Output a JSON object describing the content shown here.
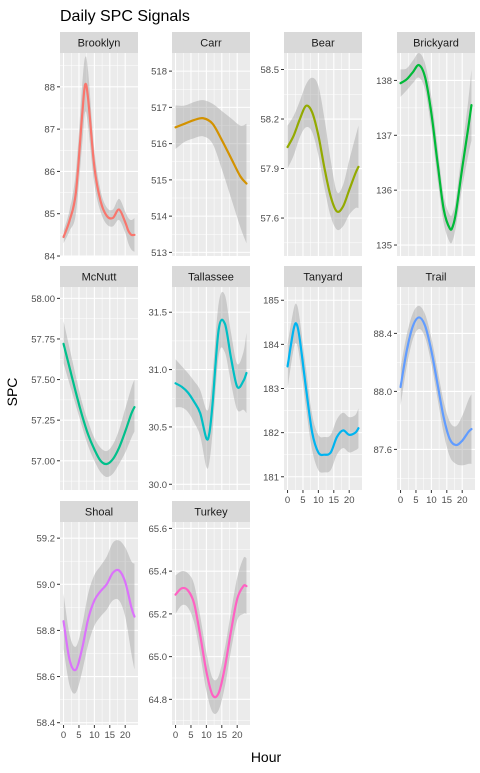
{
  "chart_data": {
    "type": "line",
    "title": "Daily SPC Signals",
    "xlabel": "Hour",
    "ylabel": "SPC",
    "grid": true,
    "x_ticks": [
      0,
      5,
      10,
      15,
      20
    ],
    "xlim": [
      -1.15,
      24.15
    ],
    "facets": [
      {
        "name": "Brooklyn",
        "color": "#F8766D",
        "ylim": [
          84.0,
          88.8
        ],
        "yticks": [
          84,
          85,
          86,
          87,
          88
        ],
        "x": [
          0,
          2,
          4,
          6,
          7,
          8,
          10,
          12,
          14,
          16,
          18,
          20,
          21,
          22,
          23
        ],
        "y": [
          84.45,
          84.85,
          85.5,
          87.3,
          88.05,
          87.7,
          86.1,
          85.3,
          84.95,
          84.9,
          85.1,
          84.8,
          84.6,
          84.5,
          84.5
        ],
        "lower": [
          84.3,
          84.6,
          85.0,
          86.6,
          87.4,
          87.05,
          85.7,
          85.05,
          84.75,
          84.7,
          84.85,
          84.55,
          84.3,
          84.15,
          84.1
        ],
        "upper": [
          84.6,
          85.1,
          86.0,
          88.0,
          88.7,
          88.35,
          86.5,
          85.55,
          85.15,
          85.1,
          85.35,
          85.05,
          84.9,
          84.85,
          84.9
        ]
      },
      {
        "name": "Carr",
        "color": "#D39200",
        "ylim": [
          512.9,
          518.5
        ],
        "yticks": [
          513,
          514,
          515,
          516,
          517,
          518
        ],
        "x": [
          0,
          3,
          6,
          9,
          12,
          15,
          18,
          21,
          23
        ],
        "y": [
          516.45,
          516.55,
          516.65,
          516.7,
          516.55,
          516.1,
          515.6,
          515.1,
          514.9
        ],
        "lower": [
          515.85,
          516.05,
          516.15,
          516.2,
          516.0,
          515.3,
          514.5,
          513.7,
          513.25
        ],
        "upper": [
          517.05,
          517.05,
          517.15,
          517.2,
          517.1,
          516.9,
          516.7,
          516.5,
          516.55
        ]
      },
      {
        "name": "Bear",
        "color": "#93AA00",
        "ylim": [
          57.37,
          58.6
        ],
        "yticks": [
          57.6,
          57.9,
          58.2,
          58.5
        ],
        "x": [
          0,
          2,
          4,
          6,
          8,
          10,
          12,
          14,
          16,
          18,
          20,
          22,
          23
        ],
        "y": [
          58.03,
          58.1,
          58.2,
          58.28,
          58.24,
          58.1,
          57.9,
          57.73,
          57.64,
          57.67,
          57.77,
          57.87,
          57.91
        ],
        "lower": [
          57.9,
          57.98,
          58.09,
          58.15,
          58.12,
          57.98,
          57.78,
          57.61,
          57.53,
          57.55,
          57.62,
          57.66,
          57.66
        ],
        "upper": [
          58.16,
          58.22,
          58.31,
          58.41,
          58.45,
          58.4,
          58.2,
          57.95,
          57.76,
          57.8,
          57.95,
          58.09,
          58.16
        ]
      },
      {
        "name": "Brickyard",
        "color": "#00BA38",
        "ylim": [
          134.8,
          138.5
        ],
        "yticks": [
          135,
          136,
          137,
          138
        ],
        "x": [
          0,
          2,
          4,
          6,
          8,
          10,
          12,
          14,
          16,
          17,
          18,
          20,
          22,
          23
        ],
        "y": [
          137.95,
          138.02,
          138.15,
          138.28,
          138.05,
          137.4,
          136.5,
          135.65,
          135.3,
          135.35,
          135.6,
          136.4,
          137.15,
          137.55
        ],
        "lower": [
          137.7,
          137.82,
          137.95,
          138.05,
          137.82,
          137.1,
          136.2,
          135.4,
          135.05,
          135.1,
          135.35,
          136.05,
          136.65,
          136.9
        ],
        "upper": [
          138.2,
          138.22,
          138.36,
          138.5,
          138.3,
          137.7,
          136.8,
          135.9,
          135.55,
          135.6,
          135.85,
          136.75,
          137.65,
          138.2
        ]
      },
      {
        "name": "McNutt",
        "color": "#00C08B",
        "ylim": [
          56.82,
          58.07
        ],
        "yticks": [
          57.0,
          57.25,
          57.5,
          57.75,
          58.0
        ],
        "x": [
          0,
          2,
          4,
          6,
          8,
          10,
          12,
          14,
          16,
          18,
          20,
          22,
          23
        ],
        "y": [
          57.72,
          57.57,
          57.42,
          57.28,
          57.16,
          57.07,
          57.0,
          56.98,
          57.01,
          57.08,
          57.18,
          57.29,
          57.33
        ],
        "lower": [
          57.6,
          57.47,
          57.34,
          57.21,
          57.09,
          57.0,
          56.93,
          56.9,
          56.92,
          56.98,
          57.05,
          57.14,
          57.18
        ],
        "upper": [
          57.86,
          57.69,
          57.52,
          57.36,
          57.24,
          57.14,
          57.08,
          57.06,
          57.1,
          57.19,
          57.32,
          57.45,
          57.5
        ]
      },
      {
        "name": "Tallassee",
        "color": "#00BFC4",
        "ylim": [
          29.95,
          31.72
        ],
        "yticks": [
          30.0,
          30.5,
          31.0,
          31.5
        ],
        "x": [
          0,
          2,
          4,
          6,
          8,
          10,
          11,
          12,
          14,
          16,
          18,
          20,
          22,
          23
        ],
        "y": [
          30.88,
          30.85,
          30.8,
          30.72,
          30.62,
          30.4,
          30.45,
          30.7,
          31.35,
          31.4,
          31.1,
          30.85,
          30.9,
          30.97
        ],
        "lower": [
          30.67,
          30.67,
          30.63,
          30.54,
          30.42,
          30.15,
          30.2,
          30.45,
          31.12,
          31.15,
          30.88,
          30.65,
          30.65,
          30.62
        ],
        "upper": [
          31.09,
          31.03,
          30.97,
          30.9,
          30.82,
          30.65,
          30.7,
          30.95,
          31.58,
          31.65,
          31.32,
          31.05,
          31.15,
          31.32
        ]
      },
      {
        "name": "Tanyard",
        "color": "#00B4F0",
        "ylim": [
          180.7,
          185.3
        ],
        "yticks": [
          181,
          182,
          183,
          184,
          185
        ],
        "x": [
          0,
          2,
          3,
          4,
          6,
          8,
          10,
          12,
          14,
          16,
          18,
          20,
          22,
          23
        ],
        "y": [
          183.5,
          184.35,
          184.45,
          184.1,
          183.0,
          182.0,
          181.55,
          181.5,
          181.55,
          181.9,
          182.05,
          181.95,
          182.0,
          182.1
        ],
        "lower": [
          183.0,
          183.9,
          184.0,
          183.65,
          182.55,
          181.6,
          181.15,
          181.1,
          181.15,
          181.5,
          181.65,
          181.55,
          181.6,
          181.65
        ],
        "upper": [
          184.0,
          184.8,
          184.9,
          184.55,
          183.45,
          182.4,
          181.95,
          181.9,
          181.95,
          182.3,
          182.45,
          182.35,
          182.4,
          182.55
        ]
      },
      {
        "name": "Trail",
        "color": "#619CFF",
        "ylim": [
          87.32,
          88.72
        ],
        "yticks": [
          87.6,
          88.0,
          88.4
        ],
        "x": [
          0,
          2,
          4,
          6,
          8,
          10,
          12,
          14,
          16,
          18,
          20,
          22,
          23
        ],
        "y": [
          88.03,
          88.28,
          88.45,
          88.51,
          88.45,
          88.28,
          88.05,
          87.82,
          87.67,
          87.63,
          87.66,
          87.72,
          87.74
        ],
        "lower": [
          87.9,
          88.17,
          88.36,
          88.43,
          88.37,
          88.19,
          87.95,
          87.71,
          87.55,
          87.5,
          87.49,
          87.5,
          87.5
        ],
        "upper": [
          88.16,
          88.39,
          88.54,
          88.59,
          88.53,
          88.37,
          88.15,
          87.93,
          87.79,
          87.76,
          87.83,
          87.94,
          87.98
        ]
      },
      {
        "name": "Shoal",
        "color": "#DB72FB",
        "ylim": [
          58.39,
          59.27
        ],
        "yticks": [
          58.4,
          58.6,
          58.8,
          59.0,
          59.2
        ],
        "x": [
          0,
          2,
          4,
          6,
          8,
          10,
          12,
          14,
          16,
          18,
          20,
          22,
          23
        ],
        "y": [
          58.84,
          58.67,
          58.63,
          58.72,
          58.85,
          58.93,
          58.97,
          59.0,
          59.05,
          59.06,
          59.01,
          58.9,
          58.86
        ],
        "lower": [
          58.72,
          58.56,
          58.53,
          58.62,
          58.74,
          58.82,
          58.86,
          58.89,
          58.93,
          58.93,
          58.86,
          58.7,
          58.63
        ],
        "upper": [
          58.96,
          58.78,
          58.73,
          58.82,
          58.96,
          59.04,
          59.08,
          59.12,
          59.18,
          59.19,
          59.16,
          59.1,
          59.09
        ]
      },
      {
        "name": "Turkey",
        "color": "#FF61C3",
        "ylim": [
          64.68,
          65.63
        ],
        "yticks": [
          64.8,
          65.0,
          65.2,
          65.4,
          65.6
        ],
        "x": [
          0,
          2,
          4,
          6,
          8,
          10,
          12,
          14,
          16,
          18,
          20,
          22,
          23
        ],
        "y": [
          65.29,
          65.32,
          65.31,
          65.25,
          65.1,
          64.93,
          64.82,
          64.83,
          64.95,
          65.12,
          65.27,
          65.33,
          65.33
        ],
        "lower": [
          65.2,
          65.24,
          65.23,
          65.16,
          65.01,
          64.84,
          64.74,
          64.75,
          64.86,
          65.03,
          65.17,
          65.2,
          65.2
        ],
        "upper": [
          65.38,
          65.4,
          65.39,
          65.34,
          65.19,
          65.02,
          64.9,
          64.91,
          65.04,
          65.21,
          65.37,
          65.46,
          65.46
        ]
      }
    ]
  }
}
